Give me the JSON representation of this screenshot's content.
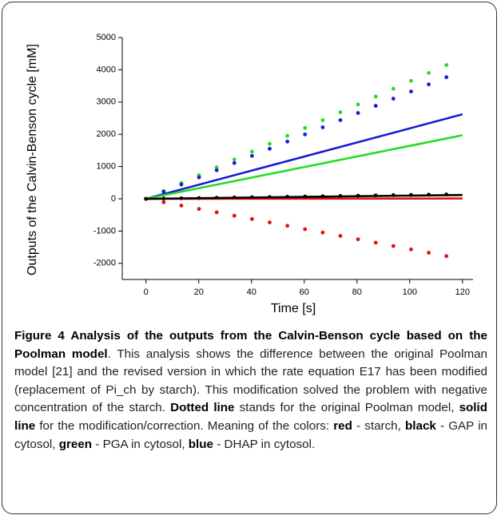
{
  "chart_data": {
    "type": "line",
    "ylabel": "Outputs of the Calvin-Benson cycle [mM]",
    "xlabel": "Time [s]",
    "xlim": [
      -9,
      124
    ],
    "xticks": [
      0,
      20,
      40,
      60,
      80,
      100,
      120
    ],
    "ylim": [
      -2500,
      5000
    ],
    "yticks": [
      -2000,
      -1000,
      0,
      1000,
      2000,
      3000,
      4000,
      5000
    ],
    "series": [
      {
        "color": "#22dd22",
        "style": "dotted",
        "x": [
          0,
          6.7,
          13.4,
          20.1,
          26.8,
          33.5,
          40.2,
          46.9,
          53.6,
          60.3,
          67,
          73.7,
          80.4,
          87.1,
          93.8,
          100.5,
          107.2,
          113.9
        ],
        "values": [
          0,
          244,
          488,
          732,
          976,
          1219,
          1463,
          1707,
          1951,
          2195,
          2439,
          2683,
          2927,
          3170,
          3414,
          3658,
          3902,
          4146
        ]
      },
      {
        "color": "#1a1ad8",
        "style": "dotted",
        "x": [
          0,
          6.7,
          13.4,
          20.1,
          26.8,
          33.5,
          40.2,
          46.9,
          53.6,
          60.3,
          67,
          73.7,
          80.4,
          87.1,
          93.8,
          100.5,
          107.2,
          113.9
        ],
        "values": [
          0,
          222,
          444,
          665,
          887,
          1109,
          1331,
          1552,
          1774,
          1996,
          2218,
          2439,
          2661,
          2883,
          3105,
          3327,
          3548,
          3770
        ]
      },
      {
        "color": "#e01010",
        "style": "dotted",
        "x": [
          0,
          6.7,
          13.4,
          20.1,
          26.8,
          33.5,
          40.2,
          46.9,
          53.6,
          60.3,
          67,
          73.7,
          80.4,
          87.1,
          93.8,
          100.5,
          107.2,
          113.9
        ],
        "values": [
          0,
          -105,
          -209,
          -314,
          -418,
          -523,
          -627,
          -732,
          -836,
          -941,
          -1045,
          -1150,
          -1254,
          -1359,
          -1463,
          -1568,
          -1672,
          -1777
        ]
      },
      {
        "color": "#000000",
        "style": "dotted",
        "x": [
          0,
          6.7,
          13.4,
          20.1,
          26.8,
          33.5,
          40.2,
          46.9,
          53.6,
          60.3,
          67,
          73.7,
          80.4,
          87.1,
          93.8,
          100.5,
          107.2,
          113.9
        ],
        "values": [
          0,
          8,
          16,
          24,
          32,
          40,
          48,
          56,
          64,
          72,
          80,
          88,
          96,
          105,
          113,
          121,
          129,
          137
        ]
      },
      {
        "color": "#1a1ad8",
        "style": "solid",
        "x": [
          0,
          120
        ],
        "values": [
          0,
          2620
        ]
      },
      {
        "color": "#22dd22",
        "style": "solid",
        "x": [
          0,
          120
        ],
        "values": [
          0,
          1970
        ]
      },
      {
        "color": "#e01010",
        "style": "solid",
        "x": [
          0,
          120
        ],
        "values": [
          0,
          10
        ]
      },
      {
        "color": "#000000",
        "style": "solid",
        "x": [
          0,
          120
        ],
        "values": [
          0,
          120
        ]
      }
    ]
  },
  "caption": {
    "runs": [
      {
        "text": "Figure 4 Analysis of the outputs from the Calvin-Benson cycle based on the Poolman model",
        "bold": true
      },
      {
        "text": ". This analysis shows the difference between the original Poolman model [21] and the revised version in which the rate equation E17 has been modified (replacement of Pi_ch by starch). This modification solved the problem with negative concentration of the starch. ",
        "bold": false
      },
      {
        "text": "Dotted line",
        "bold": true
      },
      {
        "text": " stands for the original Poolman model, ",
        "bold": false
      },
      {
        "text": "solid line",
        "bold": true
      },
      {
        "text": " for the modification/correction. Meaning of the colors: ",
        "bold": false
      },
      {
        "text": "red",
        "bold": true
      },
      {
        "text": " - starch, ",
        "bold": false
      },
      {
        "text": "black",
        "bold": true
      },
      {
        "text": " - GAP in cytosol, ",
        "bold": false
      },
      {
        "text": "green",
        "bold": true
      },
      {
        "text": " - PGA in cytosol, ",
        "bold": false
      },
      {
        "text": "blue",
        "bold": true
      },
      {
        "text": " - DHAP in cytosol.",
        "bold": false
      }
    ]
  }
}
